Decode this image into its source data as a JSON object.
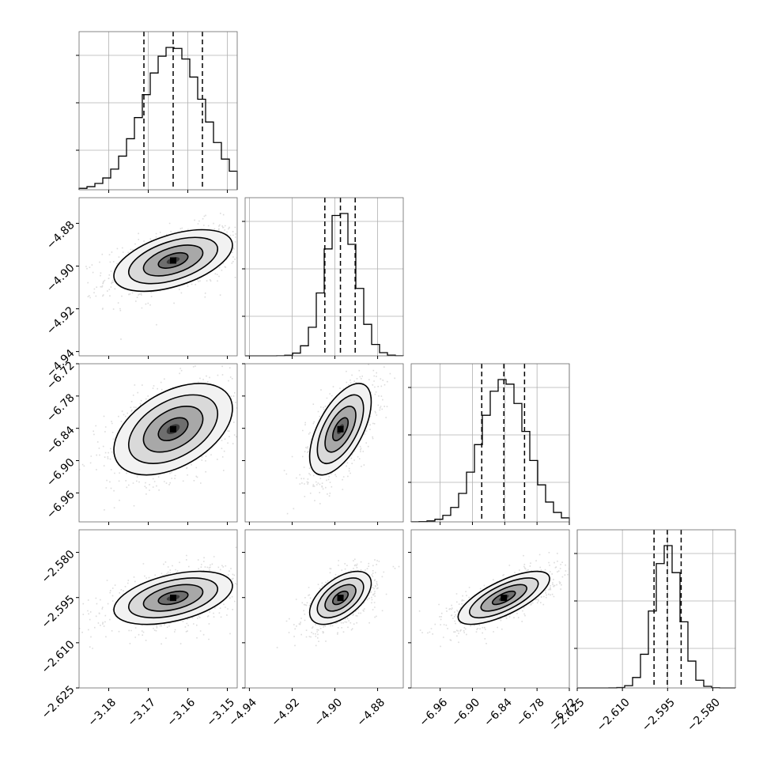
{
  "chart_data": {
    "type": "corner",
    "title": "",
    "parameters": [
      {
        "mean": -3.1637,
        "sigma": 0.0075,
        "quantiles": [
          -3.1711,
          -3.1637,
          -3.1563
        ],
        "range": [
          -3.1875,
          -3.1475
        ],
        "ticks": [
          -3.18,
          -3.17,
          -3.16,
          -3.15
        ],
        "tick_labels": [
          "−3.18",
          "−3.17",
          "−3.16",
          "−3.15"
        ]
      },
      {
        "mean": -4.8974,
        "sigma": 0.0072,
        "quantiles": [
          -4.9047,
          -4.8974,
          -4.8905
        ],
        "range": [
          -4.942,
          -4.868
        ],
        "ticks": [
          -4.94,
          -4.92,
          -4.9,
          -4.88
        ],
        "tick_labels": [
          "−4.94",
          "−4.92",
          "−4.90",
          "−4.88"
        ]
      },
      {
        "mean": -6.8416,
        "sigma": 0.0425,
        "quantiles": [
          -6.8827,
          -6.8416,
          -6.8032
        ],
        "range": [
          -7.0138,
          -6.72
        ],
        "ticks": [
          -6.96,
          -6.9,
          -6.84,
          -6.78,
          -6.72
        ],
        "tick_labels": [
          "−6.96",
          "−6.90",
          "−6.84",
          "−6.78",
          "−6.72"
        ]
      },
      {
        "mean": -2.5951,
        "sigma": 0.0044,
        "quantiles": [
          -2.5995,
          -2.5951,
          -2.5905
        ],
        "range": [
          -2.625,
          -2.5725
        ],
        "ticks": [
          -2.625,
          -2.61,
          -2.595,
          -2.58
        ],
        "tick_labels": [
          "−2.625",
          "−2.610",
          "−2.595",
          "−2.580"
        ]
      }
    ],
    "correlations": [
      [
        1.0,
        0.5,
        0.45,
        0.45
      ],
      [
        0.5,
        1.0,
        0.6,
        0.55
      ],
      [
        0.45,
        0.6,
        1.0,
        0.72
      ],
      [
        0.45,
        0.55,
        0.72,
        1.0
      ]
    ],
    "histogram_bins": 20,
    "contour_levels_sigma": [
      0.5,
      1.0,
      1.5,
      2.0
    ],
    "quantile_lines": "dashed",
    "grid": true,
    "scatter_color": "#9a9a9a",
    "line_color": "#000000"
  }
}
